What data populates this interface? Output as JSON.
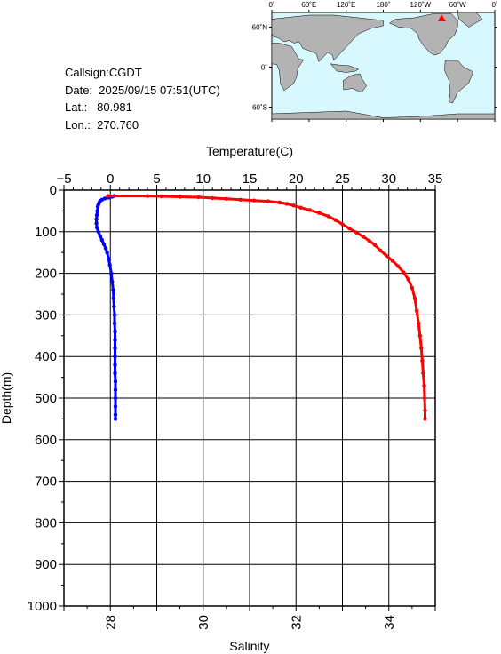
{
  "station": {
    "callsign_line": "Callsign:CGDT",
    "date_line": "Date:  2025/09/15 07:51(UTC)",
    "lat_line": "Lat.:   80.981",
    "lon_line": "Lon.:  270.760"
  },
  "map": {
    "top_labels": [
      "0˚",
      "60˚E",
      "120˚E",
      "180˚",
      "120˚W",
      "60˚W",
      "0˚"
    ],
    "lat_labels": [
      "60˚N",
      "0˚",
      "60˚S"
    ],
    "ocean_color": "#d8f8ff",
    "land_color": "#b3b3b3",
    "marker_color": "#ff0000"
  },
  "chart_data": {
    "type": "line",
    "ylabel": "Depth(m)",
    "ylim": [
      1000,
      0
    ],
    "y_ticks": [
      "0",
      "100",
      "200",
      "300",
      "400",
      "500",
      "600",
      "700",
      "800",
      "900",
      "1000"
    ],
    "grid": true,
    "top_axis": {
      "label": "Temperature(C)",
      "range": [
        -5,
        35
      ],
      "ticks": [
        "−5",
        "0",
        "5",
        "10",
        "15",
        "20",
        "25",
        "30",
        "35"
      ]
    },
    "bottom_axis": {
      "label": "Salinity",
      "range": [
        27,
        35
      ],
      "ticks": [
        "28",
        "30",
        "32",
        "34"
      ]
    },
    "series": [
      {
        "axis": "top",
        "color": "#0000ff",
        "points": [
          [
            0.4,
            14
          ],
          [
            0.2,
            16
          ],
          [
            -0.2,
            18
          ],
          [
            -0.6,
            20
          ],
          [
            -0.9,
            23
          ],
          [
            -1.1,
            26
          ],
          [
            -1.2,
            30
          ],
          [
            -1.3,
            35
          ],
          [
            -1.35,
            40
          ],
          [
            -1.4,
            50
          ],
          [
            -1.45,
            60
          ],
          [
            -1.5,
            70
          ],
          [
            -1.5,
            80
          ],
          [
            -1.45,
            90
          ],
          [
            -1.3,
            100
          ],
          [
            -1.1,
            110
          ],
          [
            -0.9,
            120
          ],
          [
            -0.7,
            130
          ],
          [
            -0.5,
            140
          ],
          [
            -0.35,
            150
          ],
          [
            -0.2,
            165
          ],
          [
            -0.05,
            180
          ],
          [
            0.1,
            200
          ],
          [
            0.2,
            220
          ],
          [
            0.3,
            240
          ],
          [
            0.35,
            260
          ],
          [
            0.4,
            280
          ],
          [
            0.45,
            300
          ],
          [
            0.45,
            320
          ],
          [
            0.5,
            340
          ],
          [
            0.5,
            360
          ],
          [
            0.5,
            380
          ],
          [
            0.5,
            400
          ],
          [
            0.5,
            420
          ],
          [
            0.5,
            440
          ],
          [
            0.55,
            460
          ],
          [
            0.55,
            480
          ],
          [
            0.55,
            500
          ],
          [
            0.55,
            520
          ],
          [
            0.55,
            540
          ],
          [
            0.55,
            550
          ]
        ]
      },
      {
        "axis": "bottom",
        "color": "#ff0000",
        "points": [
          [
            27.95,
            14
          ],
          [
            28.8,
            14
          ],
          [
            29.1,
            15
          ],
          [
            29.5,
            16
          ],
          [
            29.9,
            17
          ],
          [
            30.2,
            19
          ],
          [
            30.5,
            21
          ],
          [
            30.8,
            23
          ],
          [
            31.1,
            25
          ],
          [
            31.4,
            27
          ],
          [
            31.65,
            30
          ],
          [
            31.8,
            33
          ],
          [
            31.95,
            37
          ],
          [
            32.1,
            42
          ],
          [
            32.3,
            48
          ],
          [
            32.5,
            55
          ],
          [
            32.7,
            63
          ],
          [
            32.85,
            72
          ],
          [
            33.0,
            82
          ],
          [
            33.15,
            92
          ],
          [
            33.3,
            102
          ],
          [
            33.45,
            112
          ],
          [
            33.58,
            122
          ],
          [
            33.7,
            132
          ],
          [
            33.82,
            145
          ],
          [
            33.95,
            158
          ],
          [
            34.08,
            170
          ],
          [
            34.2,
            183
          ],
          [
            34.32,
            198
          ],
          [
            34.42,
            215
          ],
          [
            34.5,
            235
          ],
          [
            34.56,
            260
          ],
          [
            34.6,
            290
          ],
          [
            34.64,
            320
          ],
          [
            34.67,
            350
          ],
          [
            34.7,
            380
          ],
          [
            34.72,
            410
          ],
          [
            34.74,
            440
          ],
          [
            34.76,
            470
          ],
          [
            34.77,
            500
          ],
          [
            34.78,
            530
          ],
          [
            34.78,
            550
          ]
        ]
      }
    ]
  }
}
